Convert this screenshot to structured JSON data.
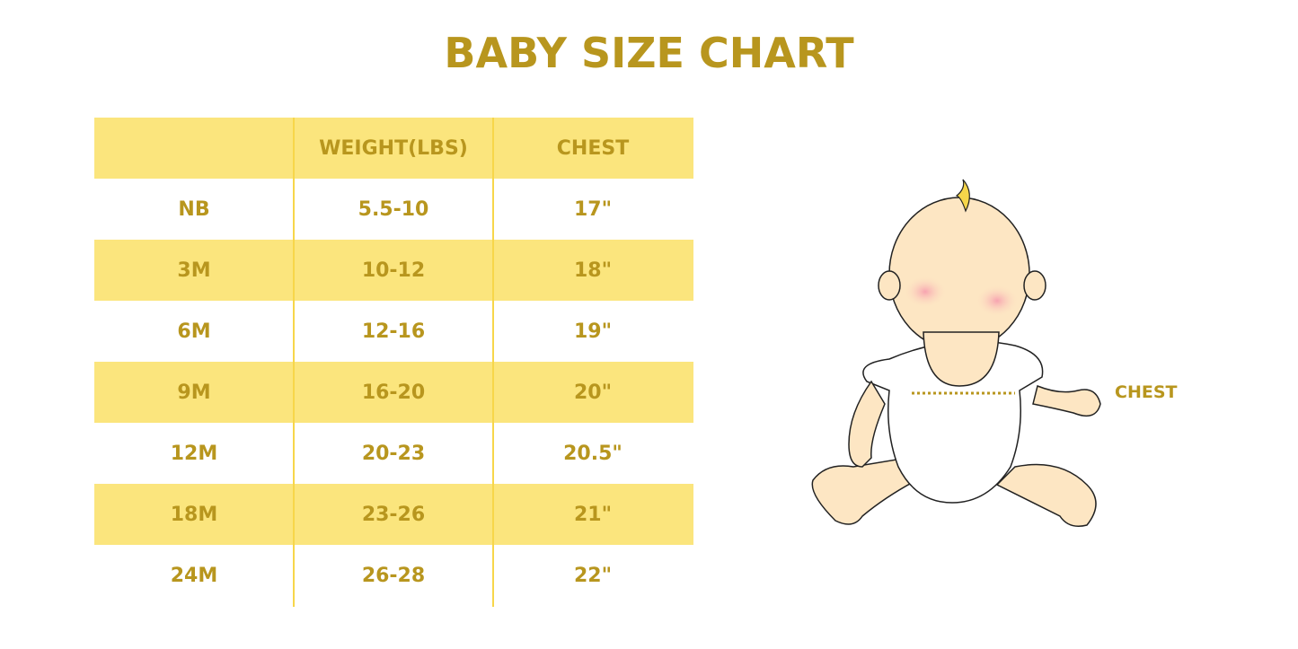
{
  "title": "BABY SIZE CHART",
  "table": {
    "headers": [
      "",
      "WEIGHT(LBS)",
      "CHEST"
    ],
    "rows": [
      [
        "NB",
        "5.5-10",
        "17\""
      ],
      [
        "3M",
        "10-12",
        "18\""
      ],
      [
        "6M",
        "12-16",
        "19\""
      ],
      [
        "9M",
        "16-20",
        "20\""
      ],
      [
        "12M",
        "20-23",
        "20.5\""
      ],
      [
        "18M",
        "23-26",
        "21\""
      ],
      [
        "24M",
        "26-28",
        "22\""
      ]
    ]
  },
  "illustration": {
    "chest_label": "CHEST"
  },
  "colors": {
    "accent_text": "#b8961e",
    "row_fill": "#fbe57d"
  }
}
